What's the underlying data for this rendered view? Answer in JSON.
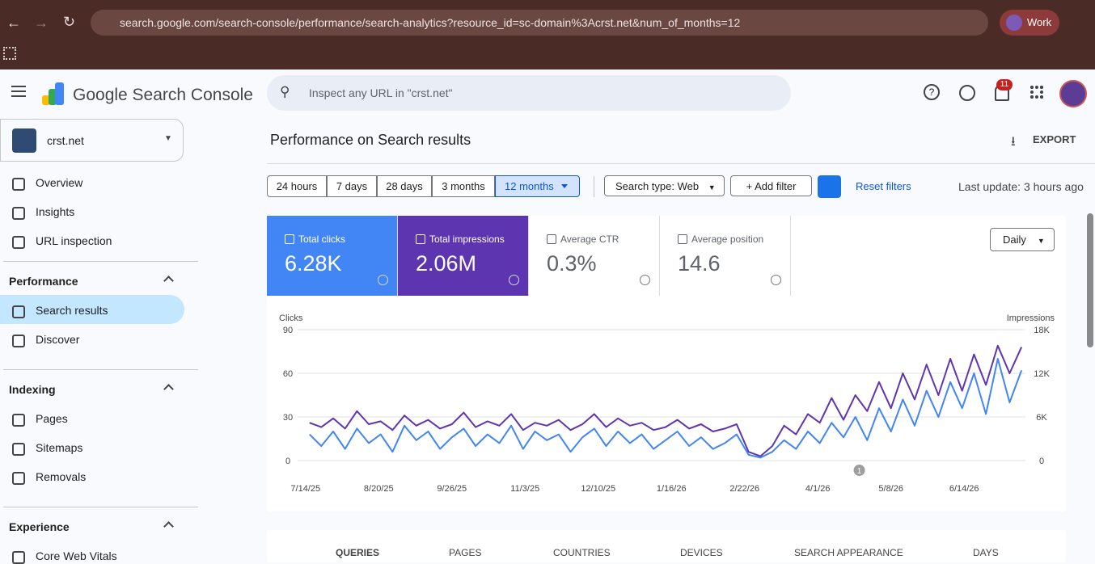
{
  "browser": {
    "url": "search.google.com/search-console/performance/search-analytics?resource_id=sc-domain%3Acrst.net&num_of_months=12",
    "profile": "Work"
  },
  "header": {
    "product": "Google Search Console",
    "search_placeholder": "Inspect any URL in \"crst.net\"",
    "notification_count": "11"
  },
  "property": "crst.net",
  "nav": {
    "top": [
      "Overview",
      "Insights",
      "URL inspection"
    ],
    "sections": [
      {
        "title": "Performance",
        "items": [
          "Search results",
          "Discover"
        ]
      },
      {
        "title": "Indexing",
        "items": [
          "Pages",
          "Sitemaps",
          "Removals"
        ]
      },
      {
        "title": "Experience",
        "items": [
          "Core Web Vitals"
        ]
      }
    ]
  },
  "main": {
    "title": "Performance on Search results",
    "export": "EXPORT",
    "ranges": [
      "24 hours",
      "7 days",
      "28 days",
      "3 months",
      "12 months"
    ],
    "search_type": "Search type: Web",
    "add_filter": "Add filter",
    "reset": "Reset filters",
    "last_update": "Last update: 3 hours ago",
    "metrics": [
      {
        "label": "Total clicks",
        "value": "6.28K"
      },
      {
        "label": "Total impressions",
        "value": "2.06M"
      },
      {
        "label": "Average CTR",
        "value": "0.3%"
      },
      {
        "label": "Average position",
        "value": "14.6"
      }
    ],
    "granularity": "Daily",
    "tabs": [
      "QUERIES",
      "PAGES",
      "COUNTRIES",
      "DEVICES",
      "SEARCH APPEARANCE",
      "DAYS"
    ]
  },
  "chart_data": {
    "type": "line",
    "ylabel": "Clicks",
    "y2label": "Impressions",
    "xlim": [
      0,
      368
    ],
    "xticks": [
      {
        "value": 4,
        "label": "7/14/25"
      },
      {
        "value": 41,
        "label": "8/20/25"
      },
      {
        "value": 78,
        "label": "9/26/25"
      },
      {
        "value": 115,
        "label": "11/3/25"
      },
      {
        "value": 152,
        "label": "12/10/25"
      },
      {
        "value": 189,
        "label": "1/16/26"
      },
      {
        "value": 226,
        "label": "2/22/26"
      },
      {
        "value": 263,
        "label": "4/1/26"
      },
      {
        "value": 300,
        "label": "5/8/26"
      },
      {
        "value": 337,
        "label": "6/14/26"
      }
    ],
    "ylim": [
      0,
      90
    ],
    "yticks": [
      0,
      30,
      60,
      90
    ],
    "y2lim": [
      0,
      18000
    ],
    "y2ticks": [
      0,
      {
        "value": 6000,
        "label": "6K"
      },
      {
        "value": 12000,
        "label": "12K"
      },
      {
        "value": 18000,
        "label": "18K"
      }
    ],
    "grid": true,
    "annotations": [
      {
        "x": 284,
        "label": "1"
      }
    ],
    "x": [
      6,
      12,
      18,
      24,
      30,
      36,
      42,
      48,
      54,
      60,
      66,
      72,
      78,
      84,
      90,
      96,
      102,
      108,
      114,
      120,
      126,
      132,
      138,
      144,
      150,
      156,
      162,
      168,
      174,
      180,
      186,
      192,
      198,
      204,
      210,
      216,
      222,
      228,
      234,
      240,
      246,
      252,
      258,
      264,
      270,
      276,
      282,
      288,
      294,
      300,
      306,
      312,
      318,
      324,
      330,
      336,
      342,
      348,
      354,
      360,
      366
    ],
    "series": [
      {
        "name": "Total clicks",
        "color": "#4285f4",
        "values": [
          18,
          10,
          20,
          8,
          22,
          12,
          18,
          6,
          24,
          14,
          20,
          8,
          16,
          22,
          10,
          18,
          12,
          24,
          8,
          20,
          14,
          18,
          6,
          16,
          22,
          10,
          20,
          12,
          18,
          8,
          14,
          20,
          10,
          16,
          8,
          12,
          18,
          4,
          2,
          6,
          14,
          8,
          20,
          12,
          26,
          16,
          30,
          14,
          36,
          20,
          42,
          24,
          48,
          30,
          54,
          36,
          60,
          32,
          70,
          40,
          62
        ]
      },
      {
        "name": "Total impressions",
        "color": "#5e35b1",
        "axis": "y2",
        "values": [
          5200,
          4600,
          5800,
          4400,
          6800,
          5000,
          5400,
          4200,
          6200,
          4800,
          5600,
          4400,
          5000,
          6600,
          4600,
          5400,
          4800,
          6400,
          4200,
          5200,
          4800,
          5600,
          4200,
          5000,
          6400,
          4600,
          5800,
          4800,
          5200,
          4200,
          4600,
          5600,
          4400,
          5000,
          4000,
          4400,
          5000,
          1200,
          600,
          2000,
          4800,
          3600,
          6400,
          5200,
          8600,
          5600,
          9000,
          6800,
          10800,
          7200,
          12000,
          8400,
          13200,
          9000,
          14000,
          9600,
          14600,
          10400,
          15800,
          12000,
          15600
        ]
      }
    ]
  }
}
